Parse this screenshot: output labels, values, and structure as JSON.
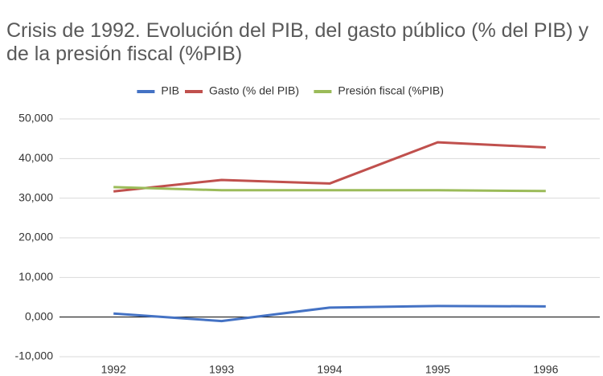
{
  "chart_data": {
    "type": "line",
    "title": "Crisis de 1992. Evolución del PIB, del gasto público (% del PIB) y de la presión fiscal (%PIB)",
    "categories": [
      "1992",
      "1993",
      "1994",
      "1995",
      "1996"
    ],
    "series": [
      {
        "name": "PIB",
        "color": "#4472c4",
        "values": [
          0.9,
          -1.0,
          2.4,
          2.8,
          2.7
        ]
      },
      {
        "name": "Gasto (% del PIB)",
        "color": "#c0504d",
        "values": [
          31.7,
          34.6,
          33.7,
          44.1,
          42.8
        ]
      },
      {
        "name": "Presión fiscal (%PIB)",
        "color": "#9bbb59",
        "values": [
          32.8,
          32.0,
          32.0,
          32.0,
          31.8
        ]
      }
    ],
    "ylim": [
      -10,
      50
    ],
    "yticks": [
      {
        "value": -10,
        "label": "-10,000"
      },
      {
        "value": 0,
        "label": "0,000"
      },
      {
        "value": 10,
        "label": "10,000"
      },
      {
        "value": 20,
        "label": "20,000"
      },
      {
        "value": 30,
        "label": "30,000"
      },
      {
        "value": 40,
        "label": "40,000"
      },
      {
        "value": 50,
        "label": "50,000"
      }
    ],
    "grid": true,
    "legend": "top"
  }
}
